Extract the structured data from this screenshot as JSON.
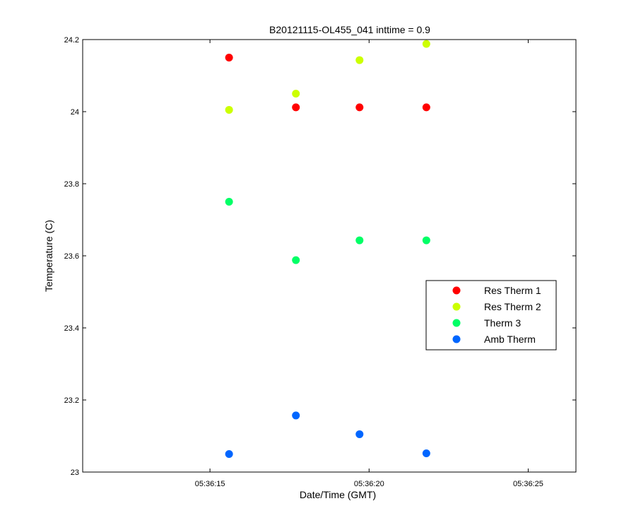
{
  "chart_data": {
    "type": "scatter",
    "title": "B20121115-OL455_041 inttime = 0.9",
    "xlabel": "Date/Time (GMT)",
    "ylabel": "Temperature (C)",
    "x_unit": "seconds past 05:36:00 GMT",
    "xlim": [
      11,
      26.5
    ],
    "ylim": [
      23,
      24.2
    ],
    "xticks": [
      15,
      20,
      25
    ],
    "xtick_labels": [
      "05:36:15",
      "05:36:20",
      "05:36:25"
    ],
    "yticks": [
      23,
      23.2,
      23.4,
      23.6,
      23.8,
      24,
      24.2
    ],
    "ytick_labels": [
      "23",
      "23.2",
      "23.4",
      "23.6",
      "23.8",
      "24",
      "24.2"
    ],
    "grid": false,
    "legend_position": "center-right",
    "series": [
      {
        "name": "Res Therm 1",
        "color": "#ff0000",
        "x": [
          15.6,
          17.7,
          19.7,
          21.8
        ],
        "y": [
          24.15,
          24.012,
          24.012,
          24.012
        ]
      },
      {
        "name": "Res Therm 2",
        "color": "#ccff00",
        "x": [
          15.6,
          17.7,
          19.7,
          21.8
        ],
        "y": [
          24.005,
          24.05,
          24.143,
          24.188
        ]
      },
      {
        "name": "Therm 3",
        "color": "#00ff66",
        "x": [
          15.6,
          17.7,
          19.7,
          21.8
        ],
        "y": [
          23.75,
          23.588,
          23.643,
          23.643
        ]
      },
      {
        "name": "Amb Therm",
        "color": "#0066ff",
        "x": [
          15.6,
          17.7,
          19.7,
          21.8
        ],
        "y": [
          23.05,
          23.157,
          23.105,
          23.052
        ]
      }
    ]
  }
}
